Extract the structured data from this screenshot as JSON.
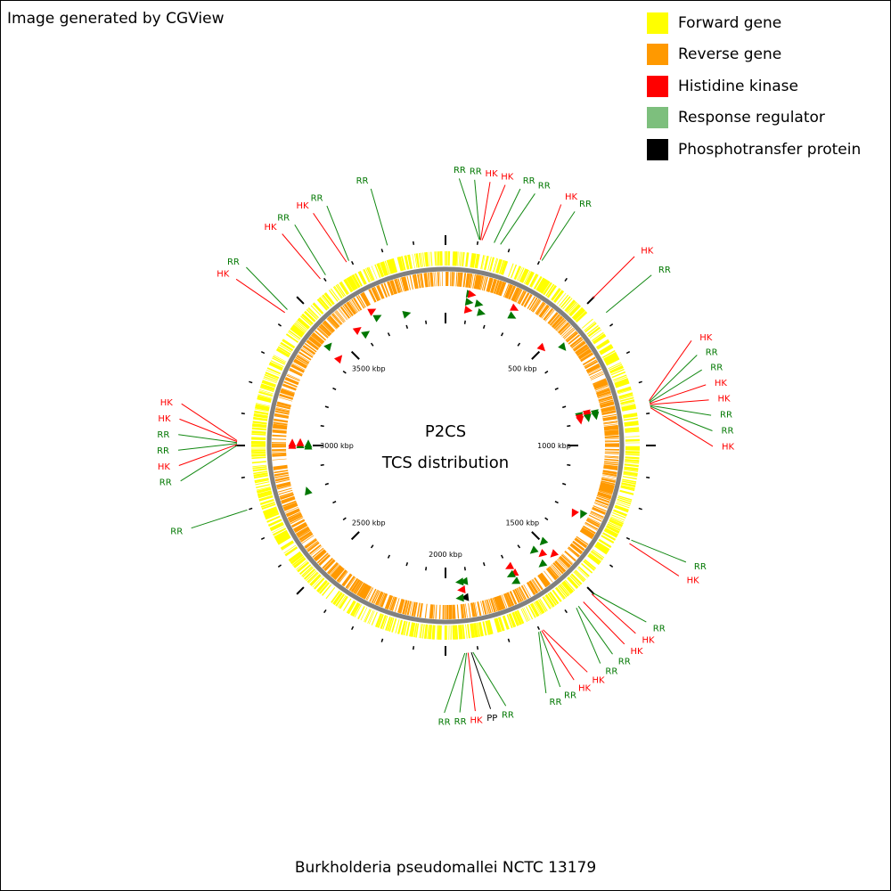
{
  "credit": "Image generated by CGView",
  "legend": [
    {
      "label": "Forward gene",
      "color": "#ffff00"
    },
    {
      "label": "Reverse gene",
      "color": "#ff9900"
    },
    {
      "label": "Histidine kinase",
      "color": "#ff0000"
    },
    {
      "label": "Response regulator",
      "color": "#7dbf7d"
    },
    {
      "label": "Phosphotransfer protein",
      "color": "#000000"
    }
  ],
  "map": {
    "title": "P2CS",
    "subtitle": "TCS distribution",
    "organism": "Burkholderia pseudomallei NCTC 13179",
    "genome_length_kbp": 4000,
    "tick_labels": [
      "500 kbp",
      "1000 kbp",
      "1500 kbp",
      "2000 kbp",
      "2500 kbp",
      "3000 kbp",
      "3500 kbp"
    ],
    "colors": {
      "forward": "#ffff00",
      "reverse": "#ff9900",
      "hk": "#ff0000",
      "rr": "#007700",
      "rr_line": "#118811",
      "pp": "#000000",
      "backbone": "#808080"
    }
  },
  "features": [
    {
      "type": "RR",
      "position_kbp": 104
    },
    {
      "type": "RR",
      "position_kbp": 106
    },
    {
      "type": "HK",
      "position_kbp": 108
    },
    {
      "type": "HK",
      "position_kbp": 112
    },
    {
      "type": "RR",
      "position_kbp": 150
    },
    {
      "type": "RR",
      "position_kbp": 170
    },
    {
      "type": "HK",
      "position_kbp": 300
    },
    {
      "type": "RR",
      "position_kbp": 306
    },
    {
      "type": "HK",
      "position_kbp": 500
    },
    {
      "type": "RR",
      "position_kbp": 560
    },
    {
      "type": "HK",
      "position_kbp": 862
    },
    {
      "type": "RR",
      "position_kbp": 865
    },
    {
      "type": "RR",
      "position_kbp": 868
    },
    {
      "type": "HK",
      "position_kbp": 871
    },
    {
      "type": "HK",
      "position_kbp": 874
    },
    {
      "type": "RR",
      "position_kbp": 877
    },
    {
      "type": "RR",
      "position_kbp": 880
    },
    {
      "type": "HK",
      "position_kbp": 884
    },
    {
      "type": "RR",
      "position_kbp": 1300
    },
    {
      "type": "HK",
      "position_kbp": 1312
    },
    {
      "type": "RR",
      "position_kbp": 1500
    },
    {
      "type": "HK",
      "position_kbp": 1505
    },
    {
      "type": "HK",
      "position_kbp": 1540
    },
    {
      "type": "RR",
      "position_kbp": 1560
    },
    {
      "type": "RR",
      "position_kbp": 1568
    },
    {
      "type": "HK",
      "position_kbp": 1690
    },
    {
      "type": "HK",
      "position_kbp": 1695
    },
    {
      "type": "RR",
      "position_kbp": 1700
    },
    {
      "type": "RR",
      "position_kbp": 1705
    },
    {
      "type": "RR",
      "position_kbp": 1916
    },
    {
      "type": "PP",
      "position_kbp": 1921
    },
    {
      "type": "HK",
      "position_kbp": 1931
    },
    {
      "type": "RR",
      "position_kbp": 1936
    },
    {
      "type": "RR",
      "position_kbp": 1941
    },
    {
      "type": "RR",
      "position_kbp": 2800
    },
    {
      "type": "RR",
      "position_kbp": 3000
    },
    {
      "type": "HK",
      "position_kbp": 3003
    },
    {
      "type": "RR",
      "position_kbp": 3006
    },
    {
      "type": "RR",
      "position_kbp": 3009
    },
    {
      "type": "HK",
      "position_kbp": 3012
    },
    {
      "type": "HK",
      "position_kbp": 3015
    },
    {
      "type": "HK",
      "position_kbp": 3440
    },
    {
      "type": "RR",
      "position_kbp": 3452
    },
    {
      "type": "HK",
      "position_kbp": 3590
    },
    {
      "type": "RR",
      "position_kbp": 3610
    },
    {
      "type": "HK",
      "position_kbp": 3685
    },
    {
      "type": "RR",
      "position_kbp": 3693
    },
    {
      "type": "RR",
      "position_kbp": 3820
    }
  ]
}
